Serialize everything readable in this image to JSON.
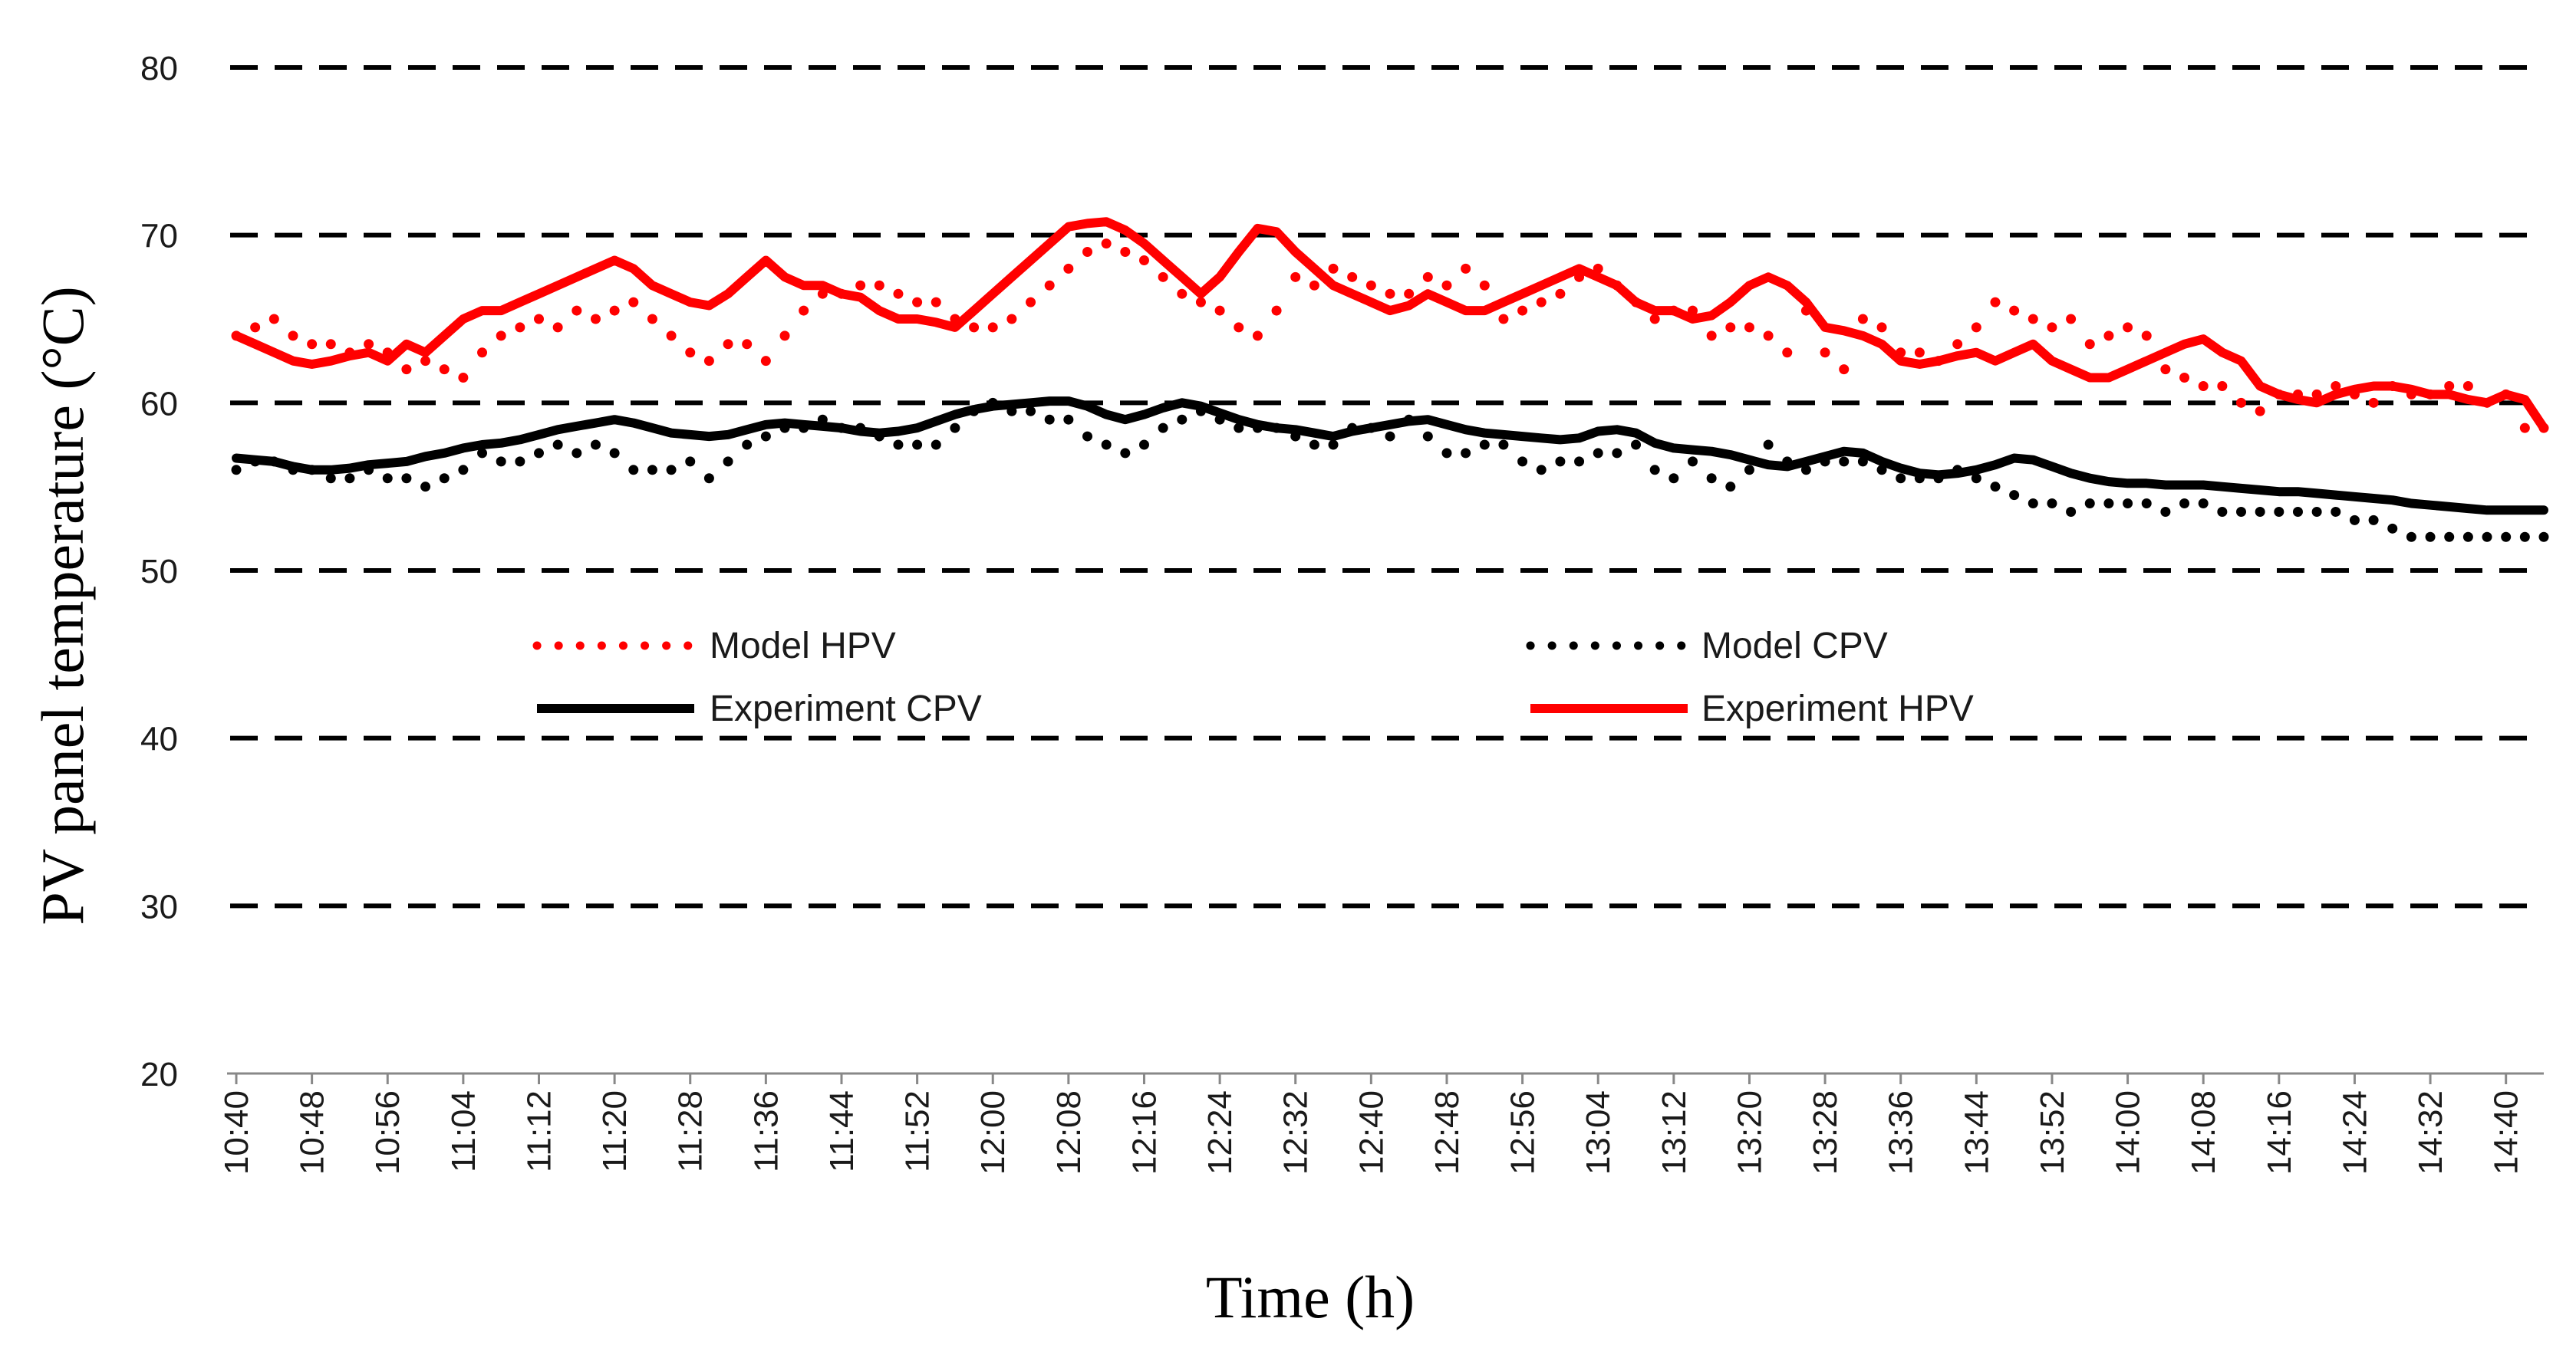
{
  "chart_data": {
    "type": "line",
    "title": "",
    "xlabel": "Time (h)",
    "ylabel": "PV panel temperature (°C)",
    "ylim": [
      20,
      80
    ],
    "yticks": [
      20,
      30,
      40,
      50,
      60,
      70,
      80
    ],
    "grid": "horizontal dashed",
    "legend_position": "center-left",
    "x_range_minutes": [
      640,
      884
    ],
    "x_tick_labels": [
      "10:40",
      "10:48",
      "10:56",
      "11:04",
      "11:12",
      "11:20",
      "11:28",
      "11:36",
      "11:44",
      "11:52",
      "12:00",
      "12:08",
      "12:16",
      "12:24",
      "12:32",
      "12:40",
      "12:48",
      "12:56",
      "13:04",
      "13:12",
      "13:20",
      "13:28",
      "13:36",
      "13:44",
      "13:52",
      "14:00",
      "14:08",
      "14:16",
      "14:24",
      "14:32",
      "14:40"
    ],
    "series": [
      {
        "name": "Model HPV",
        "style": "dotted",
        "color": "#ff0000",
        "x_minutes": [
          640,
          642,
          644,
          646,
          648,
          650,
          652,
          654,
          656,
          658,
          660,
          662,
          664,
          666,
          668,
          670,
          672,
          674,
          676,
          678,
          680,
          682,
          684,
          686,
          688,
          690,
          692,
          694,
          696,
          698,
          700,
          702,
          704,
          706,
          708,
          710,
          712,
          714,
          716,
          718,
          720,
          722,
          724,
          726,
          728,
          730,
          732,
          734,
          736,
          738,
          740,
          742,
          744,
          746,
          748,
          750,
          752,
          754,
          756,
          758,
          760,
          762,
          764,
          766,
          768,
          770,
          772,
          774,
          776,
          778,
          780,
          782,
          784,
          786,
          788,
          790,
          792,
          794,
          796,
          798,
          800,
          802,
          804,
          806,
          808,
          810,
          812,
          814,
          816,
          818,
          820,
          822,
          824,
          826,
          828,
          830,
          832,
          834,
          836,
          838,
          840,
          842,
          844,
          846,
          848,
          850,
          852,
          854,
          856,
          858,
          860,
          862,
          864,
          866,
          868,
          870,
          872,
          874,
          876,
          878,
          880,
          882,
          884
        ],
        "values": [
          64.0,
          64.5,
          65.0,
          64.0,
          63.5,
          63.5,
          63.0,
          63.5,
          63.0,
          62.0,
          62.5,
          62.0,
          61.5,
          63.0,
          64.0,
          64.5,
          65.0,
          64.5,
          65.5,
          65.0,
          65.5,
          66.0,
          65.0,
          64.0,
          63.0,
          62.5,
          63.5,
          63.5,
          62.5,
          64.0,
          65.5,
          66.5,
          66.5,
          67.0,
          67.0,
          66.5,
          66.0,
          66.0,
          65.0,
          64.5,
          64.5,
          65.0,
          66.0,
          67.0,
          68.0,
          69.0,
          69.5,
          69.0,
          68.5,
          67.5,
          66.5,
          66.0,
          65.5,
          64.5,
          64.0,
          65.5,
          67.5,
          67.0,
          68.0,
          67.5,
          67.0,
          66.5,
          66.5,
          67.5,
          67.0,
          68.0,
          67.0,
          65.0,
          65.5,
          66.0,
          66.5,
          67.5,
          68.0,
          67.0,
          66.0,
          65.0,
          65.5,
          65.5,
          64.0,
          64.5,
          64.5,
          64.0,
          63.0,
          65.5,
          63.0,
          62.0,
          65.0,
          64.5,
          63.0,
          63.0,
          62.5,
          63.5,
          64.5,
          66.0,
          65.5,
          65.0,
          64.5,
          65.0,
          63.5,
          64.0,
          64.5,
          64.0,
          62.0,
          61.5,
          61.0,
          61.0,
          60.0,
          59.5,
          60.5,
          60.5,
          60.5,
          61.0,
          60.5,
          60.0,
          61.0,
          60.5,
          60.5,
          61.0,
          61.0,
          60.0,
          60.5,
          58.5,
          58.5
        ]
      },
      {
        "name": "Model CPV",
        "style": "dotted",
        "color": "#000000",
        "x_minutes": [
          640,
          642,
          644,
          646,
          648,
          650,
          652,
          654,
          656,
          658,
          660,
          662,
          664,
          666,
          668,
          670,
          672,
          674,
          676,
          678,
          680,
          682,
          684,
          686,
          688,
          690,
          692,
          694,
          696,
          698,
          700,
          702,
          704,
          706,
          708,
          710,
          712,
          714,
          716,
          718,
          720,
          722,
          724,
          726,
          728,
          730,
          732,
          734,
          736,
          738,
          740,
          742,
          744,
          746,
          748,
          750,
          752,
          754,
          756,
          758,
          760,
          762,
          764,
          766,
          768,
          770,
          772,
          774,
          776,
          778,
          780,
          782,
          784,
          786,
          788,
          790,
          792,
          794,
          796,
          798,
          800,
          802,
          804,
          806,
          808,
          810,
          812,
          814,
          816,
          818,
          820,
          822,
          824,
          826,
          828,
          830,
          832,
          834,
          836,
          838,
          840,
          842,
          844,
          846,
          848,
          850,
          852,
          854,
          856,
          858,
          860,
          862,
          864,
          866,
          868,
          870,
          872,
          874,
          876,
          878,
          880,
          882,
          884
        ],
        "values": [
          56.0,
          56.5,
          56.5,
          56.0,
          56.0,
          55.5,
          55.5,
          56.0,
          55.5,
          55.5,
          55.0,
          55.5,
          56.0,
          57.0,
          56.5,
          56.5,
          57.0,
          57.5,
          57.0,
          57.5,
          57.0,
          56.0,
          56.0,
          56.0,
          56.5,
          55.5,
          56.5,
          57.5,
          58.0,
          58.5,
          58.5,
          59.0,
          58.5,
          58.5,
          58.0,
          57.5,
          57.5,
          57.5,
          58.5,
          59.5,
          60.0,
          59.5,
          59.5,
          59.0,
          59.0,
          58.0,
          57.5,
          57.0,
          57.5,
          58.5,
          59.0,
          59.5,
          59.0,
          58.5,
          58.5,
          58.5,
          58.0,
          57.5,
          57.5,
          58.5,
          58.5,
          58.0,
          59.0,
          58.0,
          57.0,
          57.0,
          57.5,
          57.5,
          56.5,
          56.0,
          56.5,
          56.5,
          57.0,
          57.0,
          57.5,
          56.0,
          55.5,
          56.5,
          55.5,
          55.0,
          56.0,
          57.5,
          56.5,
          56.0,
          56.5,
          56.5,
          56.5,
          56.0,
          55.5,
          55.5,
          55.5,
          56.0,
          55.5,
          55.0,
          54.5,
          54.0,
          54.0,
          53.5,
          54.0,
          54.0,
          54.0,
          54.0,
          53.5,
          54.0,
          54.0,
          53.5,
          53.5,
          53.5,
          53.5,
          53.5,
          53.5,
          53.5,
          53.0,
          53.0,
          52.5,
          52.0,
          52.0,
          52.0,
          52.0,
          52.0,
          52.0,
          52.0,
          52.0
        ]
      },
      {
        "name": "Experiment CPV",
        "style": "solid",
        "color": "#000000",
        "x_minutes": [
          640,
          642,
          644,
          646,
          648,
          650,
          652,
          654,
          656,
          658,
          660,
          662,
          664,
          666,
          668,
          670,
          672,
          674,
          676,
          678,
          680,
          682,
          684,
          686,
          688,
          690,
          692,
          694,
          696,
          698,
          700,
          702,
          704,
          706,
          708,
          710,
          712,
          714,
          716,
          718,
          720,
          722,
          724,
          726,
          728,
          730,
          732,
          734,
          736,
          738,
          740,
          742,
          744,
          746,
          748,
          750,
          752,
          754,
          756,
          758,
          760,
          762,
          764,
          766,
          768,
          770,
          772,
          774,
          776,
          778,
          780,
          782,
          784,
          786,
          788,
          790,
          792,
          794,
          796,
          798,
          800,
          802,
          804,
          806,
          808,
          810,
          812,
          814,
          816,
          818,
          820,
          822,
          824,
          826,
          828,
          830,
          832,
          834,
          836,
          838,
          840,
          842,
          844,
          846,
          848,
          850,
          852,
          854,
          856,
          858,
          860,
          862,
          864,
          866,
          868,
          870,
          872,
          874,
          876,
          878,
          880,
          882,
          884
        ],
        "values": [
          56.7,
          56.6,
          56.5,
          56.2,
          56.0,
          56.0,
          56.1,
          56.3,
          56.4,
          56.5,
          56.8,
          57.0,
          57.3,
          57.5,
          57.6,
          57.8,
          58.1,
          58.4,
          58.6,
          58.8,
          59.0,
          58.8,
          58.5,
          58.2,
          58.1,
          58.0,
          58.1,
          58.4,
          58.7,
          58.8,
          58.7,
          58.6,
          58.5,
          58.3,
          58.2,
          58.3,
          58.5,
          58.9,
          59.3,
          59.6,
          59.8,
          59.9,
          60.0,
          60.1,
          60.1,
          59.8,
          59.3,
          59.0,
          59.3,
          59.7,
          60.0,
          59.8,
          59.4,
          59.0,
          58.7,
          58.5,
          58.4,
          58.2,
          58.0,
          58.3,
          58.5,
          58.7,
          58.9,
          59.0,
          58.7,
          58.4,
          58.2,
          58.1,
          58.0,
          57.9,
          57.8,
          57.9,
          58.3,
          58.4,
          58.2,
          57.6,
          57.3,
          57.2,
          57.1,
          56.9,
          56.6,
          56.3,
          56.2,
          56.5,
          56.8,
          57.1,
          57.0,
          56.5,
          56.1,
          55.8,
          55.7,
          55.8,
          56.0,
          56.3,
          56.7,
          56.6,
          56.2,
          55.8,
          55.5,
          55.3,
          55.2,
          55.2,
          55.1,
          55.1,
          55.1,
          55.0,
          54.9,
          54.8,
          54.7,
          54.7,
          54.6,
          54.5,
          54.4,
          54.3,
          54.2,
          54.0,
          53.9,
          53.8,
          53.7,
          53.6,
          53.6,
          53.6,
          53.6
        ]
      },
      {
        "name": "Experiment HPV",
        "style": "solid",
        "color": "#ff0000",
        "x_minutes": [
          640,
          642,
          644,
          646,
          648,
          650,
          652,
          654,
          656,
          658,
          660,
          662,
          664,
          666,
          668,
          670,
          672,
          674,
          676,
          678,
          680,
          682,
          684,
          686,
          688,
          690,
          692,
          694,
          696,
          698,
          700,
          702,
          704,
          706,
          708,
          710,
          712,
          714,
          716,
          718,
          720,
          722,
          724,
          726,
          728,
          730,
          732,
          734,
          736,
          738,
          740,
          742,
          744,
          746,
          748,
          750,
          752,
          754,
          756,
          758,
          760,
          762,
          764,
          766,
          768,
          770,
          772,
          774,
          776,
          778,
          780,
          782,
          784,
          786,
          788,
          790,
          792,
          794,
          796,
          798,
          800,
          802,
          804,
          806,
          808,
          810,
          812,
          814,
          816,
          818,
          820,
          822,
          824,
          826,
          828,
          830,
          832,
          834,
          836,
          838,
          840,
          842,
          844,
          846,
          848,
          850,
          852,
          854,
          856,
          858,
          860,
          862,
          864,
          866,
          868,
          870,
          872,
          874,
          876,
          878,
          880,
          882,
          884
        ],
        "values": [
          64.0,
          63.5,
          63.0,
          62.5,
          62.3,
          62.5,
          62.8,
          63.0,
          62.5,
          63.5,
          63.0,
          64.0,
          65.0,
          65.5,
          65.5,
          66.0,
          66.5,
          67.0,
          67.5,
          68.0,
          68.5,
          68.0,
          67.0,
          66.5,
          66.0,
          65.8,
          66.5,
          67.5,
          68.5,
          67.5,
          67.0,
          67.0,
          66.5,
          66.3,
          65.5,
          65.0,
          65.0,
          64.8,
          64.5,
          65.5,
          66.5,
          67.5,
          68.5,
          69.5,
          70.5,
          70.7,
          70.8,
          70.3,
          69.5,
          68.5,
          67.5,
          66.5,
          67.5,
          69.0,
          70.4,
          70.2,
          69.0,
          68.0,
          67.0,
          66.5,
          66.0,
          65.5,
          65.8,
          66.5,
          66.0,
          65.5,
          65.5,
          66.0,
          66.5,
          67.0,
          67.5,
          68.0,
          67.5,
          67.0,
          66.0,
          65.5,
          65.5,
          65.0,
          65.2,
          66.0,
          67.0,
          67.5,
          67.0,
          66.0,
          64.5,
          64.3,
          64.0,
          63.5,
          62.5,
          62.3,
          62.5,
          62.8,
          63.0,
          62.5,
          63.0,
          63.5,
          62.5,
          62.0,
          61.5,
          61.5,
          62.0,
          62.5,
          63.0,
          63.5,
          63.8,
          63.0,
          62.5,
          61.0,
          60.5,
          60.2,
          60.0,
          60.5,
          60.8,
          61.0,
          61.0,
          60.8,
          60.5,
          60.5,
          60.2,
          60.0,
          60.5,
          60.2,
          58.5
        ]
      }
    ]
  }
}
